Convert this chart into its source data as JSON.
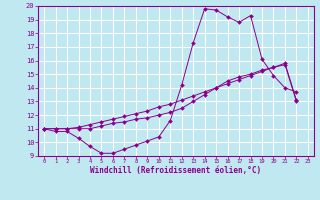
{
  "xlabel": "Windchill (Refroidissement éolien,°C)",
  "xlim": [
    -0.5,
    23.5
  ],
  "ylim": [
    9,
    20
  ],
  "xticks": [
    0,
    1,
    2,
    3,
    4,
    5,
    6,
    7,
    8,
    9,
    10,
    11,
    12,
    13,
    14,
    15,
    16,
    17,
    18,
    19,
    20,
    21,
    22,
    23
  ],
  "yticks": [
    9,
    10,
    11,
    12,
    13,
    14,
    15,
    16,
    17,
    18,
    19,
    20
  ],
  "bg_color": "#c0e8f0",
  "line_color": "#8b008b",
  "grid_color": "#ffffff",
  "series": [
    [
      11.0,
      10.8,
      10.8,
      10.3,
      9.7,
      9.2,
      9.2,
      9.5,
      9.8,
      10.1,
      10.4,
      11.6,
      14.2,
      17.3,
      19.8,
      19.7,
      19.2,
      18.8,
      19.3,
      16.1,
      14.9,
      14.0,
      13.7
    ],
    [
      11.0,
      11.0,
      11.0,
      11.0,
      11.0,
      11.2,
      11.4,
      11.5,
      11.7,
      11.8,
      12.0,
      12.2,
      12.5,
      13.0,
      13.5,
      14.0,
      14.5,
      14.8,
      15.0,
      15.3,
      15.5,
      15.7,
      13.0
    ],
    [
      11.0,
      11.0,
      11.0,
      11.1,
      11.3,
      11.5,
      11.7,
      11.9,
      12.1,
      12.3,
      12.6,
      12.8,
      13.1,
      13.4,
      13.7,
      14.0,
      14.3,
      14.6,
      14.9,
      15.2,
      15.5,
      15.8,
      13.1
    ]
  ]
}
